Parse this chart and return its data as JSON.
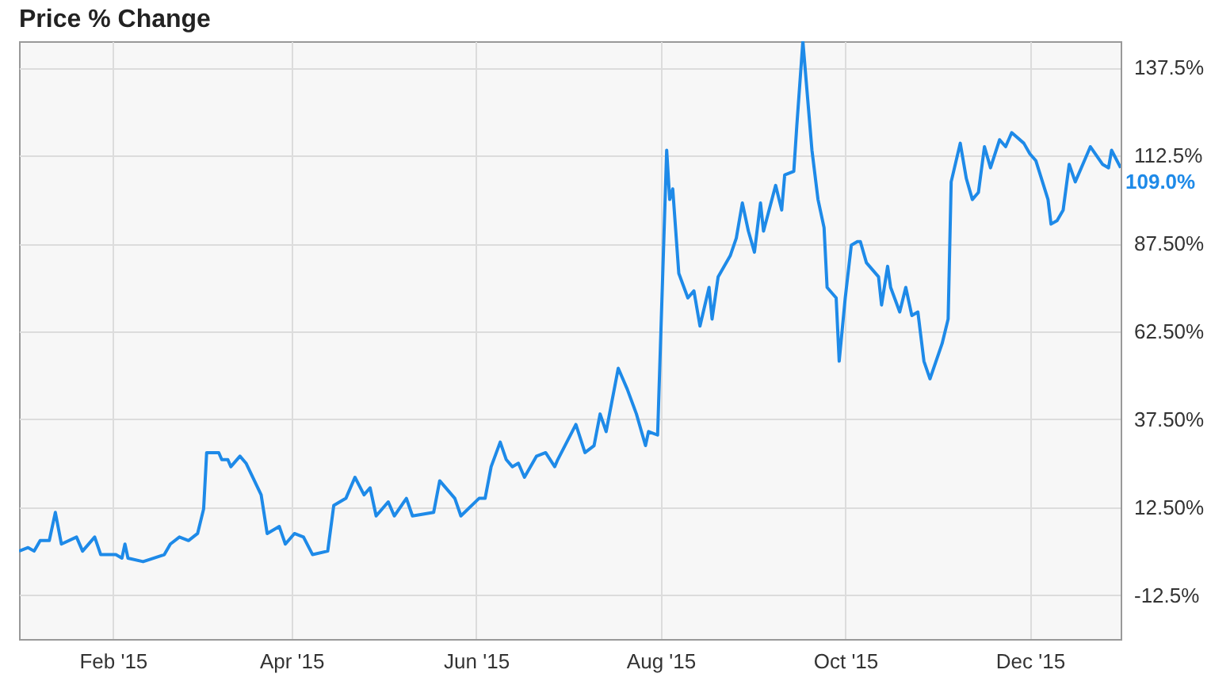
{
  "chart_data": {
    "type": "line",
    "title": "Price % Change",
    "x": [
      "2015-01-01",
      "2015-01-04",
      "2015-01-06",
      "2015-01-08",
      "2015-01-11",
      "2015-01-13",
      "2015-01-15",
      "2015-01-20",
      "2015-01-22",
      "2015-01-26",
      "2015-01-28",
      "2015-02-02",
      "2015-02-04",
      "2015-02-05",
      "2015-02-06",
      "2015-02-11",
      "2015-02-18",
      "2015-02-20",
      "2015-02-23",
      "2015-02-26",
      "2015-03-01",
      "2015-03-03",
      "2015-03-04",
      "2015-03-08",
      "2015-03-09",
      "2015-03-11",
      "2015-03-12",
      "2015-03-15",
      "2015-03-17",
      "2015-03-22",
      "2015-03-24",
      "2015-03-28",
      "2015-03-30",
      "2015-04-02",
      "2015-04-05",
      "2015-04-08",
      "2015-04-13",
      "2015-04-15",
      "2015-04-19",
      "2015-04-22",
      "2015-04-25",
      "2015-04-27",
      "2015-04-29",
      "2015-05-03",
      "2015-05-05",
      "2015-05-09",
      "2015-05-11",
      "2015-05-18",
      "2015-05-20",
      "2015-05-25",
      "2015-05-27",
      "2015-06-02",
      "2015-06-04",
      "2015-06-06",
      "2015-06-09",
      "2015-06-11",
      "2015-06-13",
      "2015-06-15",
      "2015-06-17",
      "2015-06-21",
      "2015-06-24",
      "2015-06-27",
      "2015-06-28",
      "2015-07-04",
      "2015-07-07",
      "2015-07-10",
      "2015-07-12",
      "2015-07-14",
      "2015-07-18",
      "2015-07-21",
      "2015-07-24",
      "2015-07-27",
      "2015-07-28",
      "2015-07-31",
      "2015-08-03",
      "2015-08-04",
      "2015-08-05",
      "2015-08-07",
      "2015-08-10",
      "2015-08-12",
      "2015-08-14",
      "2015-08-17",
      "2015-08-18",
      "2015-08-20",
      "2015-08-24",
      "2015-08-26",
      "2015-08-28",
      "2015-08-30",
      "2015-09-01",
      "2015-09-03",
      "2015-09-04",
      "2015-09-08",
      "2015-09-10",
      "2015-09-11",
      "2015-09-14",
      "2015-09-15",
      "2015-09-17",
      "2015-09-20",
      "2015-09-22",
      "2015-09-24",
      "2015-09-25",
      "2015-09-28",
      "2015-09-29",
      "2015-10-01",
      "2015-10-03",
      "2015-10-05",
      "2015-10-06",
      "2015-10-08",
      "2015-10-12",
      "2015-10-13",
      "2015-10-15",
      "2015-10-16",
      "2015-10-19",
      "2015-10-21",
      "2015-10-23",
      "2015-10-25",
      "2015-10-27",
      "2015-10-29",
      "2015-11-02",
      "2015-11-04",
      "2015-11-05",
      "2015-11-08",
      "2015-11-10",
      "2015-11-12",
      "2015-11-14",
      "2015-11-16",
      "2015-11-18",
      "2015-11-21",
      "2015-11-23",
      "2015-11-25",
      "2015-11-29",
      "2015-12-01",
      "2015-12-03",
      "2015-12-07",
      "2015-12-08",
      "2015-12-10",
      "2015-12-12",
      "2015-12-14",
      "2015-12-16",
      "2015-12-18",
      "2015-12-21",
      "2015-12-25",
      "2015-12-27",
      "2015-12-28",
      "2015-12-31"
    ],
    "series": [
      {
        "color": "#1e8ae8",
        "values": [
          0,
          1,
          0,
          3,
          3,
          11,
          2,
          4,
          0,
          4,
          -1,
          -1,
          -2,
          2,
          -2,
          -3,
          -1,
          2,
          4,
          3,
          5,
          12,
          28,
          28,
          26,
          26,
          24,
          27,
          25,
          16,
          5,
          7,
          2,
          5,
          4,
          -1,
          0,
          13,
          15,
          21,
          16,
          18,
          10,
          14,
          10,
          15,
          10,
          11,
          20,
          15,
          10,
          15,
          15,
          24,
          31,
          26,
          24,
          25,
          21,
          27,
          28,
          24,
          26,
          36,
          28,
          30,
          39,
          34,
          52,
          46,
          39,
          30,
          34,
          33,
          114,
          100,
          103,
          79,
          72,
          74,
          64,
          75,
          66,
          78,
          84,
          89,
          99,
          91,
          85,
          99,
          91,
          104,
          97,
          107,
          108,
          121,
          145,
          114,
          100,
          92,
          75,
          72,
          54,
          72,
          87,
          88,
          88,
          82,
          78,
          70,
          81,
          75,
          68,
          75,
          67,
          68,
          54,
          49,
          59,
          66,
          105,
          116,
          106,
          100,
          102,
          115,
          109,
          117,
          115,
          119,
          116,
          113,
          111,
          100,
          93,
          94,
          97,
          110,
          105,
          109,
          115,
          110,
          109,
          114,
          109
        ]
      }
    ],
    "xlim": [
      "2015-01-01",
      "2015-12-31"
    ],
    "xticks": [
      {
        "value": "2015-02-01",
        "label": "Feb '15"
      },
      {
        "value": "2015-04-01",
        "label": "Apr '15"
      },
      {
        "value": "2015-06-01",
        "label": "Jun '15"
      },
      {
        "value": "2015-08-01",
        "label": "Aug '15"
      },
      {
        "value": "2015-10-01",
        "label": "Oct '15"
      },
      {
        "value": "2015-12-01",
        "label": "Dec '15"
      }
    ],
    "ylim": [
      -25,
      145
    ],
    "yticks": [
      {
        "value": -12.5,
        "label": "-12.5%"
      },
      {
        "value": 12.5,
        "label": "12.50%"
      },
      {
        "value": 37.5,
        "label": "37.50%"
      },
      {
        "value": 62.5,
        "label": "62.50%"
      },
      {
        "value": 87.5,
        "label": "87.50%"
      },
      {
        "value": 112.5,
        "label": "112.5%"
      },
      {
        "value": 137.5,
        "label": "137.5%"
      }
    ],
    "grid": true,
    "annotations": [
      {
        "text": "109.0%",
        "x": "2015-12-31",
        "y": 109
      }
    ]
  }
}
